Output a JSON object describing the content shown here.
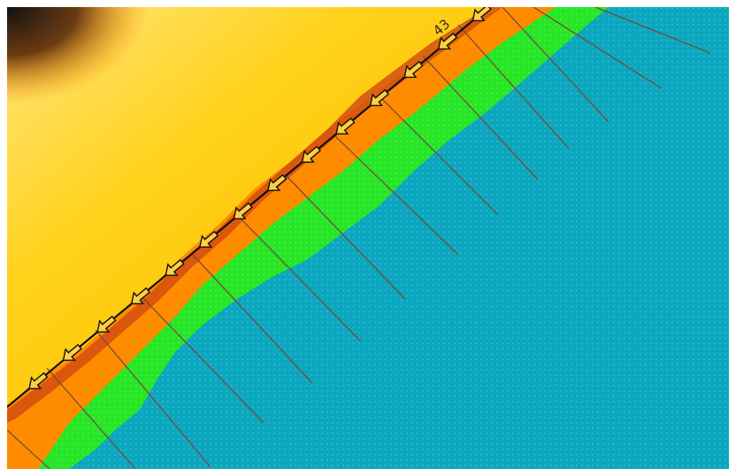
{
  "shoreline_label": "43",
  "colors": {
    "land_high": "#ffd11a",
    "land_peak": "#ffe86a",
    "land_edge": "#ff8c00",
    "crest": "#d14a10",
    "band_green": "#26e626",
    "water": "#0aa7bf",
    "transect": "#7a4a3a",
    "baseline": "#111111",
    "corner_dark": "#1a1a1a"
  },
  "legend": []
}
